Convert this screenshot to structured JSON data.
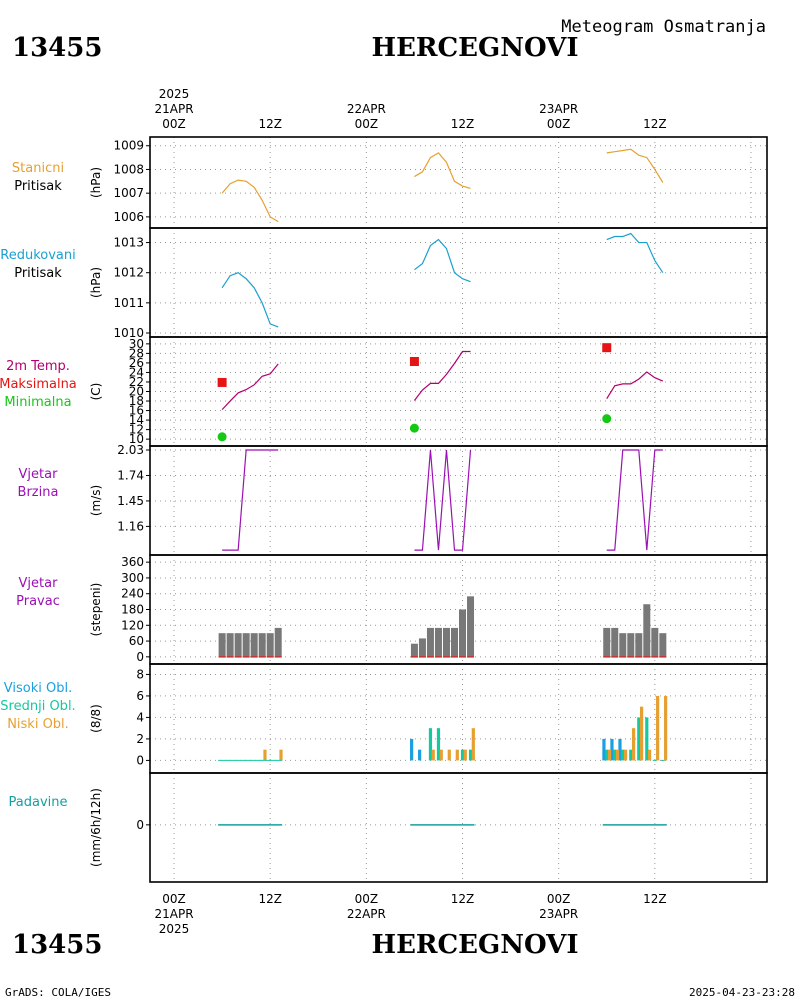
{
  "header": {
    "station_id": "13455",
    "station_name": "HERCEGNOVI",
    "subtitle": "Meteogram Osmatranja"
  },
  "footer": {
    "credit": "GrADS: COLA/IGES",
    "timestamp": "2025-04-23-23:28"
  },
  "time_axis": {
    "top_labels": [
      {
        "hour": 0,
        "lines": [
          "2025",
          "21APR",
          "00Z"
        ]
      },
      {
        "hour": 12,
        "lines": [
          "12Z"
        ]
      },
      {
        "hour": 24,
        "lines": [
          "22APR",
          "00Z"
        ]
      },
      {
        "hour": 36,
        "lines": [
          "12Z"
        ]
      },
      {
        "hour": 48,
        "lines": [
          "23APR",
          "00Z"
        ]
      },
      {
        "hour": 60,
        "lines": [
          "12Z"
        ]
      }
    ],
    "bottom_labels": [
      {
        "hour": 0,
        "lines": [
          "00Z",
          "21APR",
          "2025"
        ]
      },
      {
        "hour": 12,
        "lines": [
          "12Z"
        ]
      },
      {
        "hour": 24,
        "lines": [
          "00Z",
          "22APR"
        ]
      },
      {
        "hour": 36,
        "lines": [
          "12Z"
        ]
      },
      {
        "hour": 48,
        "lines": [
          "00Z",
          "23APR"
        ]
      },
      {
        "hour": 60,
        "lines": [
          "12Z"
        ]
      }
    ]
  },
  "colors": {
    "station_pressure": "#e6a032",
    "reduced_pressure": "#1aa0d0",
    "temperature": "#b4006e",
    "tmax": "#e61414",
    "tmin": "#14c814",
    "wind": "#9b10b4",
    "wind_dir_bar": "#787878",
    "wind_dir_base": "#c83232",
    "high_cloud": "#1aa0e0",
    "mid_cloud": "#14c8a0",
    "low_cloud": "#e6a032",
    "precip": "#14a0a0"
  },
  "chart_data": [
    {
      "type": "line",
      "id": "station_pressure",
      "labels": [
        "Stanicni",
        "Pritisak"
      ],
      "ylabel": "(hPa)",
      "ylim": [
        1005.7,
        1009.2
      ],
      "yticks": [
        1006,
        1007,
        1008,
        1009
      ],
      "series": [
        {
          "segments": [
            [
              [
                6,
                1007.0
              ],
              [
                7,
                1007.4
              ],
              [
                8,
                1007.55
              ],
              [
                9,
                1007.5
              ],
              [
                10,
                1007.25
              ],
              [
                11,
                1006.7
              ],
              [
                12,
                1006.0
              ],
              [
                13,
                1005.8
              ]
            ],
            [
              [
                30,
                1007.7
              ],
              [
                31,
                1007.9
              ],
              [
                32,
                1008.5
              ],
              [
                33,
                1008.7
              ],
              [
                34,
                1008.3
              ],
              [
                35,
                1007.5
              ],
              [
                36,
                1007.3
              ],
              [
                37,
                1007.2
              ]
            ],
            [
              [
                54,
                1008.7
              ],
              [
                55,
                1008.75
              ],
              [
                56,
                1008.8
              ],
              [
                57,
                1008.85
              ],
              [
                58,
                1008.6
              ],
              [
                59,
                1008.5
              ],
              [
                60,
                1008.0
              ],
              [
                61,
                1007.45
              ]
            ]
          ]
        }
      ]
    },
    {
      "type": "line",
      "id": "reduced_pressure",
      "labels": [
        "Redukovani",
        "Pritisak"
      ],
      "ylabel": "(hPa)",
      "ylim": [
        1010.0,
        1013.35
      ],
      "yticks": [
        1010,
        1011,
        1012,
        1013
      ],
      "series": [
        {
          "segments": [
            [
              [
                6,
                1011.5
              ],
              [
                7,
                1011.9
              ],
              [
                8,
                1012.0
              ],
              [
                9,
                1011.8
              ],
              [
                10,
                1011.5
              ],
              [
                11,
                1011.0
              ],
              [
                12,
                1010.3
              ],
              [
                13,
                1010.2
              ]
            ],
            [
              [
                30,
                1012.1
              ],
              [
                31,
                1012.3
              ],
              [
                32,
                1012.9
              ],
              [
                33,
                1013.1
              ],
              [
                34,
                1012.8
              ],
              [
                35,
                1012.0
              ],
              [
                36,
                1011.8
              ],
              [
                37,
                1011.7
              ]
            ],
            [
              [
                54,
                1013.1
              ],
              [
                55,
                1013.2
              ],
              [
                56,
                1013.2
              ],
              [
                57,
                1013.3
              ],
              [
                58,
                1013.0
              ],
              [
                59,
                1013.0
              ],
              [
                60,
                1012.4
              ],
              [
                61,
                1012.0
              ]
            ]
          ]
        }
      ]
    },
    {
      "type": "line",
      "id": "temperature",
      "labels": [
        "2m Temp.",
        "Maksimalna",
        "Minimalna"
      ],
      "ylabel": "(C)",
      "ylim": [
        9.4,
        30.6
      ],
      "yticks": [
        10,
        12,
        14,
        16,
        18,
        20,
        22,
        24,
        26,
        28,
        30
      ],
      "series": [
        {
          "name": "2m Temp.",
          "segments": [
            [
              [
                6,
                16.2
              ],
              [
                7,
                18.0
              ],
              [
                8,
                19.7
              ],
              [
                9,
                20.4
              ],
              [
                10,
                21.4
              ],
              [
                11,
                23.2
              ],
              [
                12,
                23.7
              ],
              [
                13,
                25.8
              ]
            ],
            [
              [
                30,
                18.1
              ],
              [
                31,
                20.3
              ],
              [
                32,
                21.7
              ],
              [
                33,
                21.7
              ],
              [
                34,
                23.6
              ],
              [
                35,
                25.9
              ],
              [
                36,
                28.4
              ],
              [
                37,
                28.4
              ]
            ],
            [
              [
                54,
                18.5
              ],
              [
                55,
                21.2
              ],
              [
                56,
                21.6
              ],
              [
                57,
                21.6
              ],
              [
                58,
                22.6
              ],
              [
                59,
                24.1
              ],
              [
                60,
                22.9
              ],
              [
                61,
                22.2
              ]
            ]
          ]
        }
      ],
      "tmax": [
        [
          6,
          21.9
        ],
        [
          30,
          26.3
        ],
        [
          54,
          29.2
        ]
      ],
      "tmin": [
        [
          6,
          10.5
        ],
        [
          30,
          12.3
        ],
        [
          54,
          14.3
        ]
      ]
    },
    {
      "type": "line",
      "id": "wind_speed",
      "labels": [
        "Vjetar",
        "Brzina"
      ],
      "ylabel": "(m/s)",
      "ylim": [
        0.88,
        2.03
      ],
      "yticks": [
        1.16,
        1.45,
        1.74,
        2.03
      ],
      "series": [
        {
          "segments": [
            [
              [
                6,
                0.89
              ],
              [
                7,
                0.89
              ],
              [
                8,
                0.89
              ],
              [
                9,
                2.03
              ],
              [
                10,
                2.03
              ],
              [
                11,
                2.03
              ],
              [
                12,
                2.03
              ],
              [
                13,
                2.03
              ]
            ],
            [
              [
                30,
                0.89
              ],
              [
                31,
                0.89
              ],
              [
                32,
                2.03
              ],
              [
                33,
                0.89
              ],
              [
                34,
                2.03
              ],
              [
                35,
                0.89
              ],
              [
                36,
                0.89
              ],
              [
                37,
                2.03
              ]
            ],
            [
              [
                54,
                0.89
              ],
              [
                55,
                0.89
              ],
              [
                56,
                2.03
              ],
              [
                57,
                2.03
              ],
              [
                58,
                2.03
              ],
              [
                59,
                0.89
              ],
              [
                60,
                2.03
              ],
              [
                61,
                2.03
              ]
            ]
          ]
        }
      ]
    },
    {
      "type": "bar",
      "id": "wind_direction",
      "labels": [
        "Vjetar",
        "Pravac"
      ],
      "ylabel": "(stepeni)",
      "ylim": [
        -12,
        372
      ],
      "yticks": [
        0,
        60,
        120,
        180,
        240,
        300,
        360
      ],
      "bars": [
        [
          6,
          90
        ],
        [
          7,
          90
        ],
        [
          8,
          90
        ],
        [
          9,
          90
        ],
        [
          10,
          90
        ],
        [
          11,
          90
        ],
        [
          12,
          90
        ],
        [
          13,
          110
        ],
        [
          30,
          50
        ],
        [
          31,
          70
        ],
        [
          32,
          110
        ],
        [
          33,
          110
        ],
        [
          34,
          110
        ],
        [
          35,
          110
        ],
        [
          36,
          180
        ],
        [
          37,
          230
        ],
        [
          54,
          110
        ],
        [
          55,
          110
        ],
        [
          56,
          90
        ],
        [
          57,
          90
        ],
        [
          58,
          90
        ],
        [
          59,
          200
        ],
        [
          60,
          110
        ],
        [
          61,
          90
        ]
      ]
    },
    {
      "type": "bar",
      "id": "cloud_cover",
      "labels": [
        "Visoki Obl.",
        "Srednji Obl.",
        "Niski Obl."
      ],
      "ylabel": "(8/8)",
      "ylim": [
        -0.8,
        8.6
      ],
      "yticks": [
        0,
        2,
        4,
        6,
        8
      ],
      "series": [
        {
          "name": "Visoki Obl.",
          "values": [
            [
              30,
              2
            ],
            [
              31,
              1
            ],
            [
              54,
              2
            ],
            [
              55,
              2
            ],
            [
              56,
              2
            ]
          ]
        },
        {
          "name": "Srednji Obl.",
          "values": [
            [
              32,
              3
            ],
            [
              33,
              3
            ],
            [
              36,
              1
            ],
            [
              37,
              1
            ],
            [
              54,
              1
            ],
            [
              55,
              1
            ],
            [
              56,
              1
            ],
            [
              57,
              1
            ],
            [
              58,
              4
            ],
            [
              59,
              4
            ],
            [
              60,
              0
            ],
            [
              61,
              0
            ]
          ]
        },
        {
          "name": "Niski Obl.",
          "values": [
            [
              11,
              1
            ],
            [
              13,
              1
            ],
            [
              32,
              1
            ],
            [
              33,
              1
            ],
            [
              34,
              1
            ],
            [
              35,
              1
            ],
            [
              36,
              1
            ],
            [
              37,
              3
            ],
            [
              54,
              1
            ],
            [
              55,
              1
            ],
            [
              56,
              1
            ],
            [
              57,
              3
            ],
            [
              58,
              5
            ],
            [
              59,
              1
            ],
            [
              60,
              6
            ],
            [
              61,
              6
            ]
          ]
        }
      ]
    },
    {
      "type": "bar",
      "id": "precipitation",
      "labels": [
        "Padavine"
      ],
      "ylabel": "(mm/6h/12h)",
      "ylim": [
        -5,
        4.5
      ],
      "yticks": [
        0
      ],
      "bars": [
        [
          6,
          0
        ],
        [
          13,
          0
        ],
        [
          30,
          0
        ],
        [
          37,
          0
        ],
        [
          54,
          0
        ],
        [
          61,
          0
        ]
      ]
    }
  ]
}
